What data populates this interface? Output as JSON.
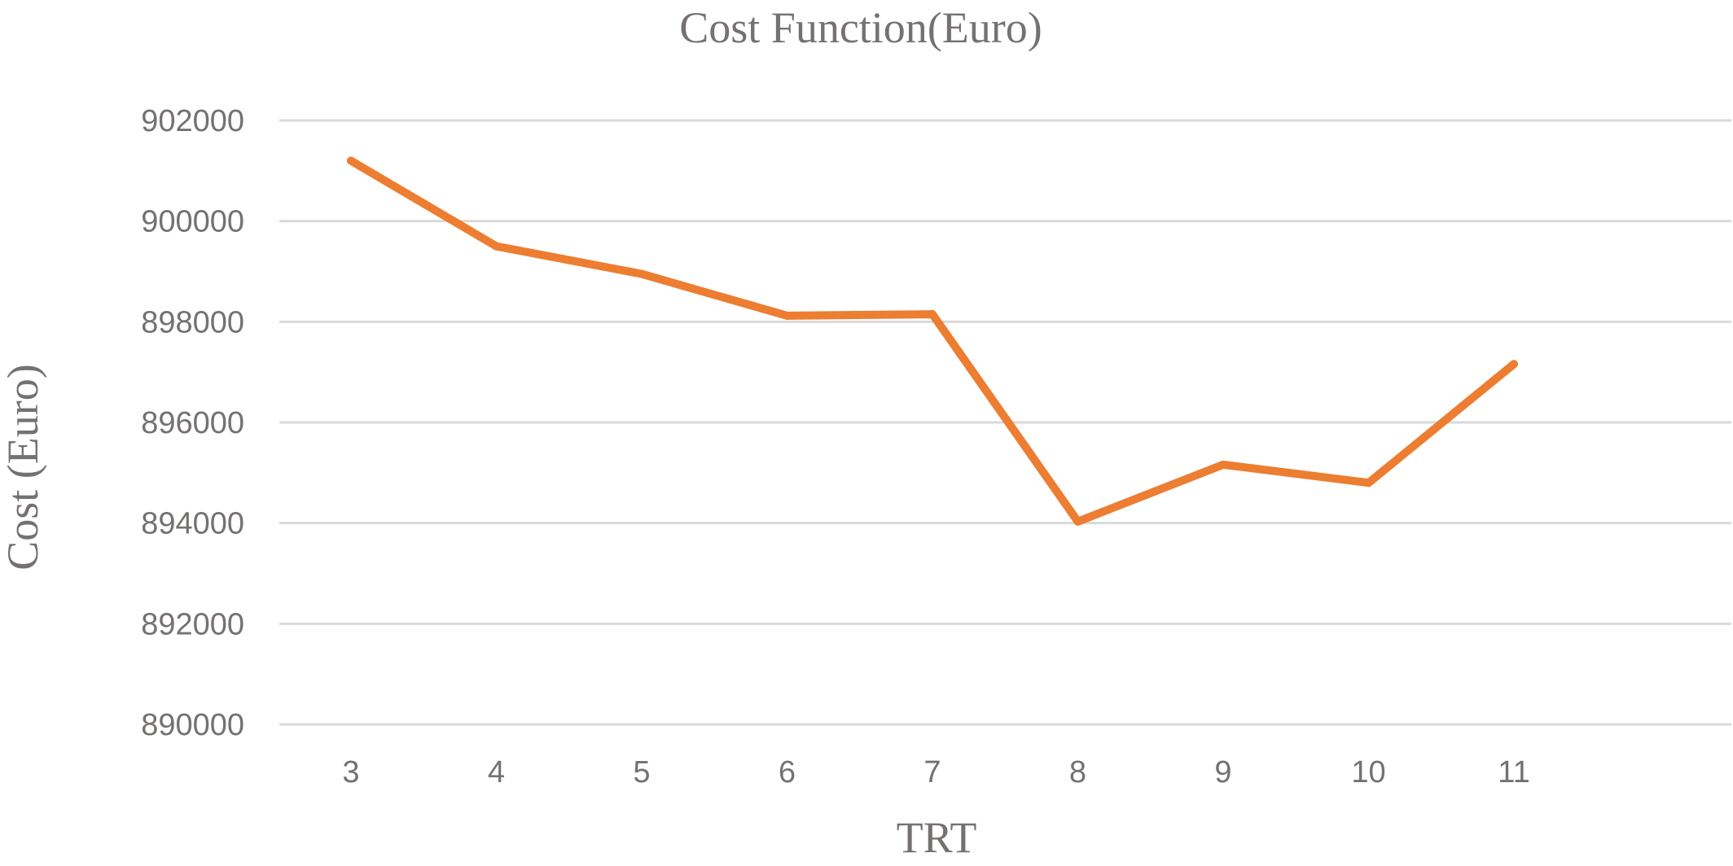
{
  "chart_data": {
    "type": "line",
    "title": "Cost Function(Euro)",
    "xlabel": "TRT",
    "ylabel": "Cost (Euro)",
    "categories": [
      "3",
      "4",
      "5",
      "6",
      "7",
      "8",
      "9",
      "10",
      "11"
    ],
    "series": [
      {
        "values": [
          901200,
          899500,
          898950,
          898120,
          898150,
          894030,
          895160,
          894800,
          897160
        ],
        "color": "#ed7d31"
      }
    ],
    "ylim": [
      890000,
      902000
    ],
    "yticks": [
      "890000",
      "892000",
      "894000",
      "896000",
      "898000",
      "900000",
      "902000"
    ],
    "grid": true,
    "legend": "none"
  }
}
